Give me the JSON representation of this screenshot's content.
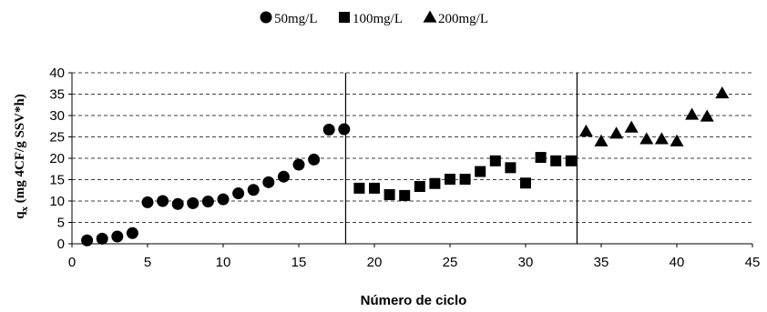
{
  "chart_data": {
    "type": "scatter",
    "xlabel": "Número de ciclo",
    "ylabel": "qx (mg 4CF/g SSV*h)",
    "ylabel_main": "q",
    "ylabel_sub": "x",
    "ylabel_rest": " (mg 4CF/g SSV*h)",
    "xlim": [
      0,
      45
    ],
    "ylim": [
      0,
      40
    ],
    "x_ticks": [
      0,
      5,
      10,
      15,
      20,
      25,
      30,
      35,
      40,
      45
    ],
    "y_ticks": [
      0,
      5,
      10,
      15,
      20,
      25,
      30,
      35,
      40
    ],
    "grid": "horizontal dashed",
    "legend_position": "top-center",
    "phase_dividers": [
      18.1,
      33.4
    ],
    "series": [
      {
        "name": "50mg/L",
        "marker": "circle",
        "x": [
          1,
          2,
          3,
          4,
          5,
          6,
          7,
          8,
          9,
          10,
          11,
          12,
          13,
          14,
          15,
          16,
          17,
          18
        ],
        "y": [
          0.8,
          1.2,
          1.7,
          2.5,
          9.7,
          10,
          9.3,
          9.5,
          9.9,
          10.4,
          11.8,
          12.6,
          14.4,
          15.7,
          18.5,
          19.7,
          26.7,
          26.8
        ]
      },
      {
        "name": "100mg/L",
        "marker": "square",
        "x": [
          19,
          20,
          21,
          22,
          23,
          24,
          25,
          26,
          27,
          28,
          29,
          30,
          31,
          32,
          33
        ],
        "y": [
          13,
          13,
          11.5,
          11.3,
          13.4,
          14.1,
          15.1,
          15.1,
          16.9,
          19.4,
          17.8,
          14.2,
          20.2,
          19.4,
          19.4
        ]
      },
      {
        "name": "200mg/L",
        "marker": "triangle",
        "x": [
          34,
          35,
          36,
          37,
          38,
          39,
          40,
          41,
          42,
          43
        ],
        "y": [
          26.3,
          24,
          25.8,
          27.2,
          24.5,
          24.5,
          24,
          30.2,
          29.8,
          35.2
        ]
      }
    ]
  }
}
